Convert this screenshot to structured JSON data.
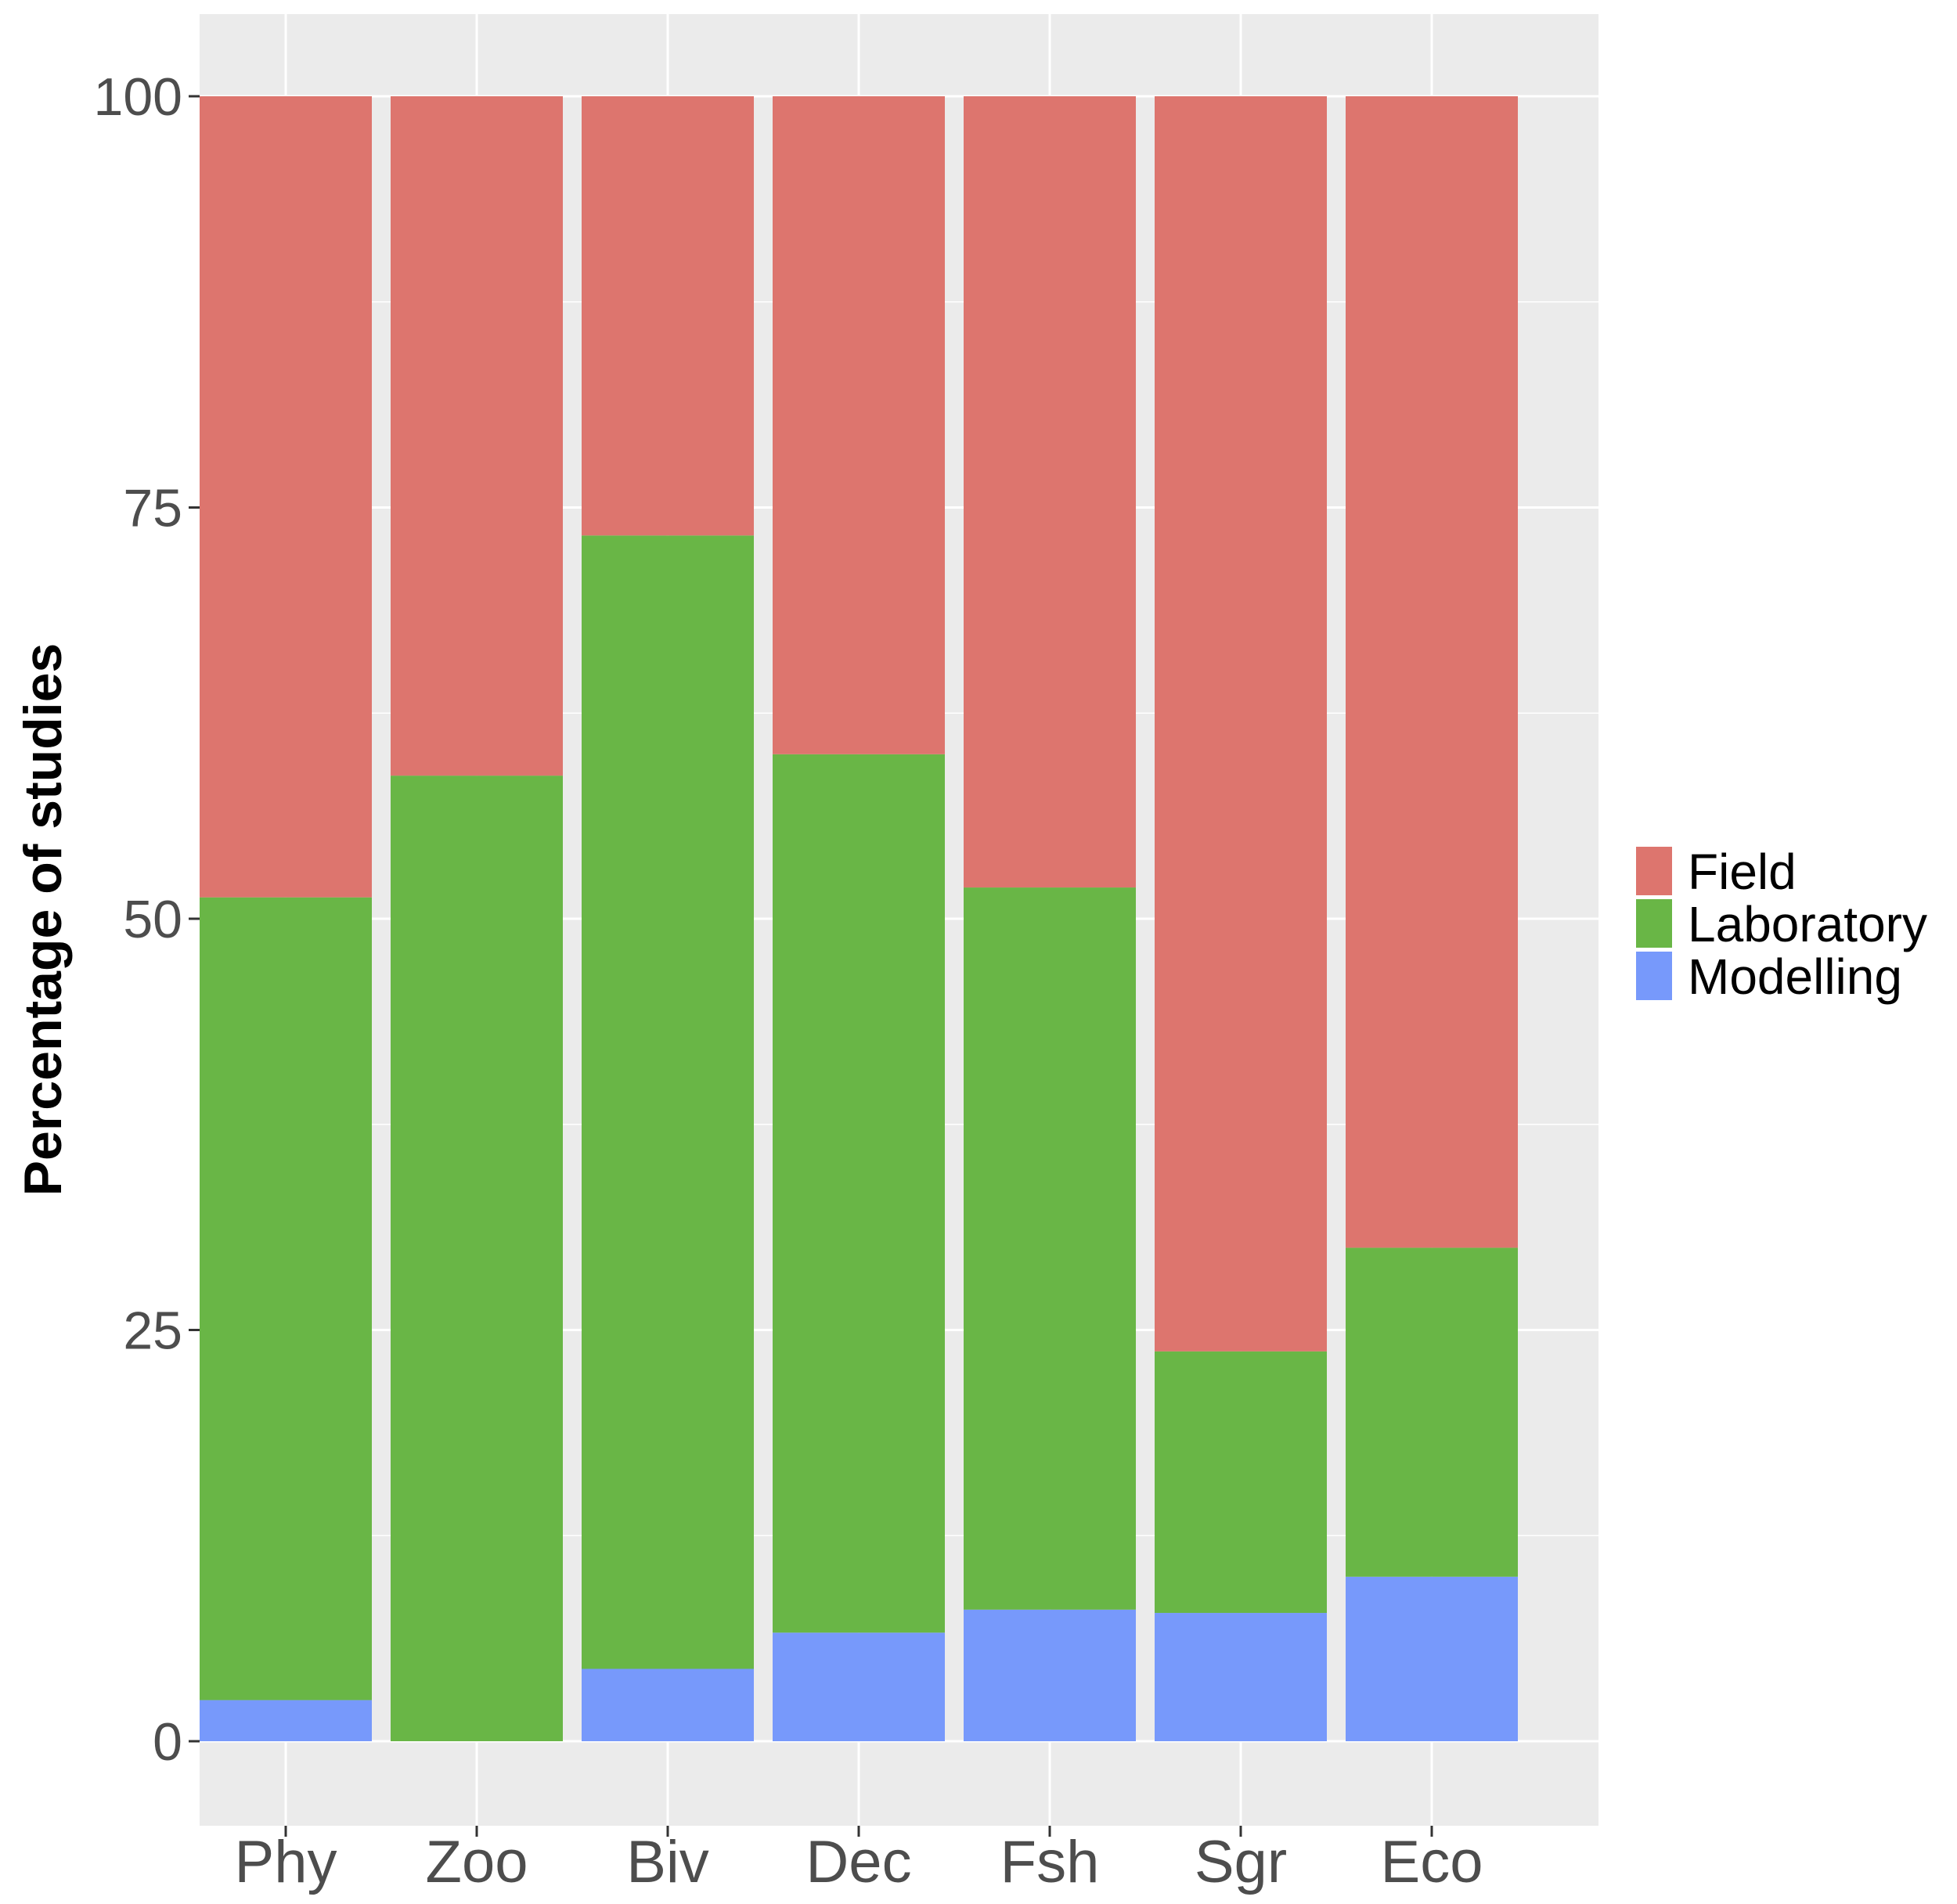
{
  "chart_data": {
    "type": "bar",
    "stacked": true,
    "categories": [
      "Phy",
      "Zoo",
      "Biv",
      "Dec",
      "Fsh",
      "Sgr",
      "Eco"
    ],
    "series": [
      {
        "name": "Modelling",
        "color": "#7799fb",
        "values": [
          2.5,
          0,
          4.4,
          6.6,
          8.0,
          7.8,
          10.0
        ]
      },
      {
        "name": "Laboratory",
        "color": "#69b646",
        "values": [
          48.8,
          58.7,
          68.9,
          53.4,
          43.9,
          15.9,
          20.0
        ]
      },
      {
        "name": "Field",
        "color": "#dd756e",
        "values": [
          48.7,
          41.3,
          26.7,
          40.0,
          48.1,
          76.3,
          70.0
        ]
      }
    ],
    "legend_order": [
      "Field",
      "Laboratory",
      "Modelling"
    ],
    "xlabel": "",
    "ylabel": "Percentage of studies",
    "ylim": [
      -5,
      105
    ],
    "yticks": [
      "0",
      "25",
      "50",
      "75",
      "100"
    ],
    "grid": true,
    "legend_position": "right",
    "panel_background": "#ebebeb"
  }
}
